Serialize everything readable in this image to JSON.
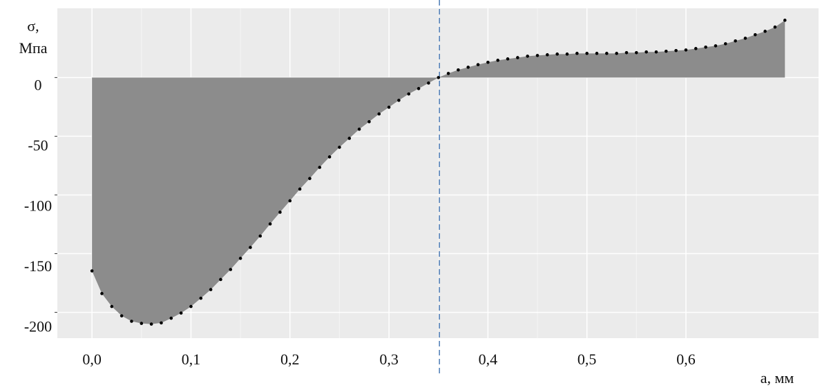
{
  "chart_data": {
    "type": "area",
    "y_label": "σ,",
    "y_unit": "Мпа",
    "x_label": "a, мм",
    "x": [
      0,
      0.01,
      0.02,
      0.03,
      0.04,
      0.05,
      0.06,
      0.07,
      0.08,
      0.09,
      0.1,
      0.11,
      0.12,
      0.13,
      0.14,
      0.15,
      0.16,
      0.17,
      0.18,
      0.19,
      0.2,
      0.21,
      0.22,
      0.23,
      0.24,
      0.25,
      0.26,
      0.27,
      0.28,
      0.29,
      0.3,
      0.31,
      0.32,
      0.33,
      0.34,
      0.35,
      0.36,
      0.37,
      0.38,
      0.39,
      0.4,
      0.41,
      0.42,
      0.43,
      0.44,
      0.45,
      0.46,
      0.47,
      0.48,
      0.49,
      0.5,
      0.51,
      0.52,
      0.53,
      0.54,
      0.55,
      0.56,
      0.57,
      0.58,
      0.59,
      0.6,
      0.61,
      0.62,
      0.63,
      0.64,
      0.65,
      0.66,
      0.67,
      0.68,
      0.69,
      0.7
    ],
    "values": [
      -164.7,
      -184,
      -195,
      -203,
      -207.6,
      -209.4,
      -210,
      -209,
      -205,
      -200.6,
      -195,
      -188,
      -180.6,
      -172,
      -163.5,
      -154,
      -144.7,
      -135,
      -124.7,
      -114.7,
      -105,
      -95,
      -86,
      -76.5,
      -67.6,
      -59.4,
      -51.8,
      -44,
      -37.6,
      -31,
      -25.3,
      -19.4,
      -14,
      -9.4,
      -4.7,
      0,
      3.5,
      6.5,
      8.8,
      11,
      13,
      14.7,
      15.9,
      17,
      18.2,
      18.8,
      19.4,
      20,
      20,
      20.6,
      20.6,
      20.6,
      20.6,
      20.6,
      21.2,
      21.2,
      21.8,
      21.8,
      22.4,
      23,
      23.5,
      24.7,
      25.9,
      27,
      28.8,
      31.2,
      33.5,
      36.5,
      39.4,
      43,
      48.8
    ],
    "color": "#8c8c8c",
    "point_color": "#000000",
    "vline": 0.351,
    "vline_color": "#4a7ab5",
    "xlim": [
      -0.035,
      0.734
    ],
    "ylim": [
      -222,
      59
    ],
    "xticks": [
      {
        "value": 0,
        "label": "0,0"
      },
      {
        "value": 0.1,
        "label": "0,1"
      },
      {
        "value": 0.2,
        "label": "0,2"
      },
      {
        "value": 0.3,
        "label": "0,3"
      },
      {
        "value": 0.4,
        "label": "0,4"
      },
      {
        "value": 0.5,
        "label": "0,5"
      },
      {
        "value": 0.6,
        "label": "0,6"
      }
    ],
    "yticks": [
      0,
      -50,
      -100,
      -150,
      -200
    ],
    "grid": true
  }
}
